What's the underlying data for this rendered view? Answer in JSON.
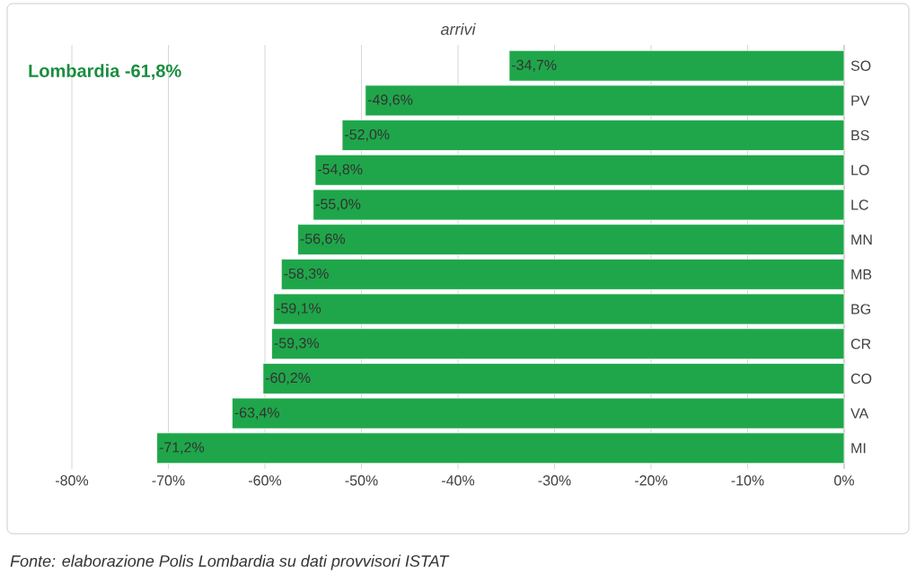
{
  "chart_data": {
    "type": "bar",
    "orientation": "horizontal",
    "title": "arrivi",
    "categories": [
      "SO",
      "PV",
      "BS",
      "LO",
      "LC",
      "MN",
      "MB",
      "BG",
      "CR",
      "CO",
      "VA",
      "MI"
    ],
    "values": [
      -34.7,
      -49.6,
      -52.0,
      -54.8,
      -55.0,
      -56.6,
      -58.3,
      -59.1,
      -59.3,
      -60.2,
      -63.4,
      -71.2
    ],
    "value_labels": [
      "-34,7%",
      "-49,6%",
      "-52,0%",
      "-54,8%",
      "-55,0%",
      "-56,6%",
      "-58,3%",
      "-59,1%",
      "-59,3%",
      "-60,2%",
      "-63,4%",
      "-71,2%"
    ],
    "color": "#1fa64a",
    "xlim": [
      -80,
      0
    ],
    "xticks": [
      {
        "value": -80,
        "label": "-80%"
      },
      {
        "value": -70,
        "label": "-70%"
      },
      {
        "value": -60,
        "label": "-60%"
      },
      {
        "value": -50,
        "label": "-50%"
      },
      {
        "value": -40,
        "label": "-40%"
      },
      {
        "value": -30,
        "label": "-30%"
      },
      {
        "value": -20,
        "label": "-20%"
      },
      {
        "value": -10,
        "label": "-10%"
      },
      {
        "value": 0,
        "label": "0%"
      }
    ],
    "grid": "x",
    "annotations": [
      "Lombardia -61,8%",
      "Fonte: elaborazione Polis Lombardia su dati provvisori ISTAT"
    ]
  }
}
